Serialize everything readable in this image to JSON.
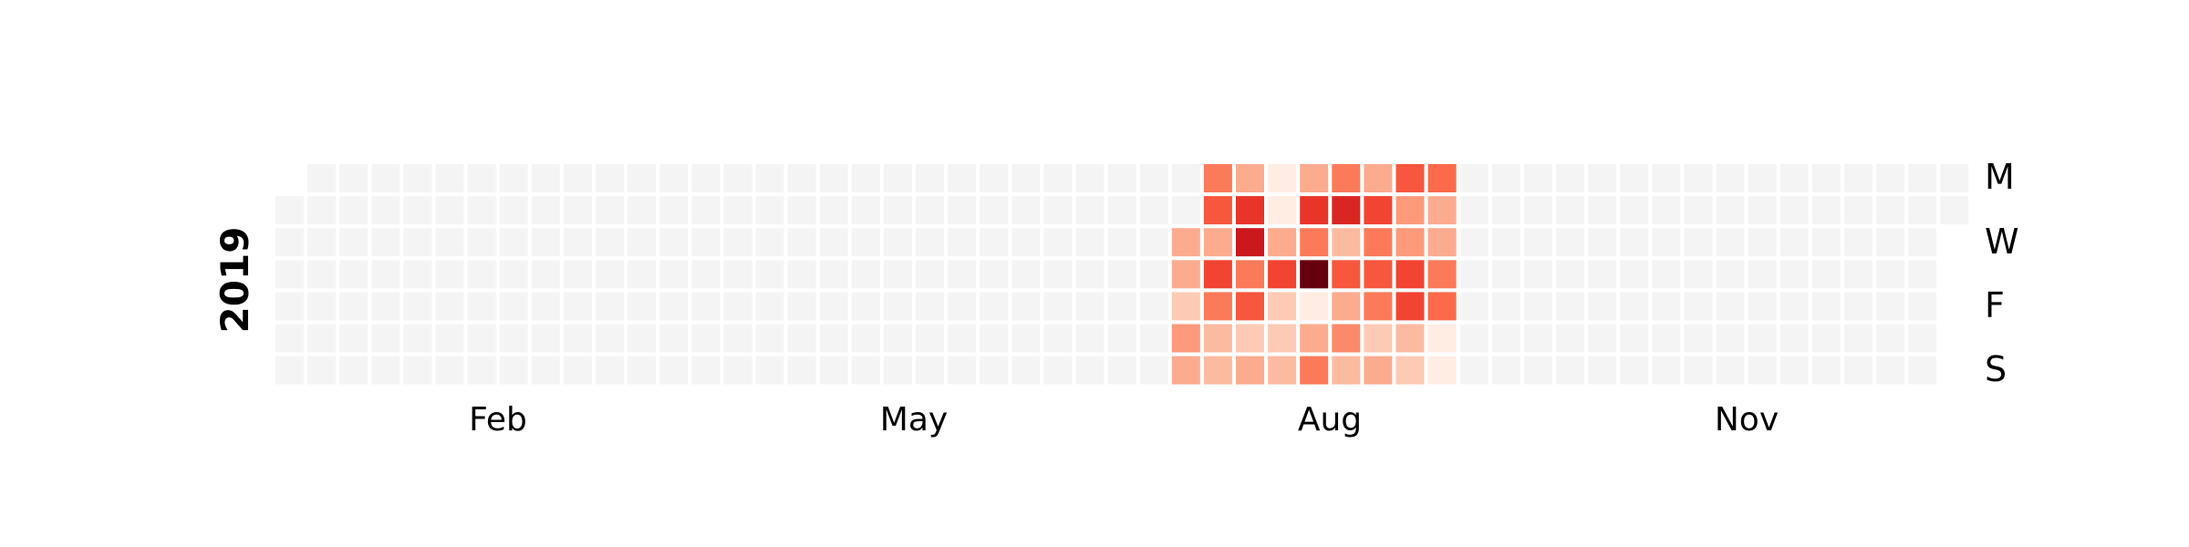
{
  "chart_data": {
    "type": "heatmap",
    "title": "",
    "year_label": "2019",
    "year": 2019,
    "month_labels": [
      "Feb",
      "May",
      "Aug",
      "Nov"
    ],
    "weekday_labels": [
      "M",
      "W",
      "F",
      "S"
    ],
    "colorscale": "Reds",
    "empty_color": "#f4f4f4",
    "value_range": [
      0,
      1
    ],
    "active_weeks": [
      {
        "week_start": "2019-07-15",
        "mon_to_sun": [
          null,
          null,
          0.3,
          0.3,
          0.2,
          0.35,
          0.3
        ]
      },
      {
        "week_start": "2019-07-22",
        "mon_to_sun": [
          0.45,
          0.55,
          0.3,
          0.6,
          0.45,
          0.25,
          0.25
        ]
      },
      {
        "week_start": "2019-07-29",
        "mon_to_sun": [
          0.3,
          0.65,
          0.75,
          0.45,
          0.55,
          0.2,
          0.3
        ]
      },
      {
        "week_start": "2019-08-05",
        "mon_to_sun": [
          0.05,
          0.05,
          0.3,
          0.6,
          0.2,
          0.2,
          0.25
        ]
      },
      {
        "week_start": "2019-08-12",
        "mon_to_sun": [
          0.3,
          0.65,
          0.45,
          1.0,
          0.05,
          0.3,
          0.45
        ]
      },
      {
        "week_start": "2019-08-19",
        "mon_to_sun": [
          0.45,
          0.7,
          0.25,
          0.55,
          0.3,
          0.4,
          0.25
        ]
      },
      {
        "week_start": "2019-08-26",
        "mon_to_sun": [
          0.3,
          0.6,
          0.45,
          0.55,
          0.45,
          0.2,
          0.3
        ]
      },
      {
        "week_start": "2019-09-02",
        "mon_to_sun": [
          0.55,
          0.35,
          0.35,
          0.6,
          0.6,
          0.25,
          0.2
        ]
      },
      {
        "week_start": "2019-09-09",
        "mon_to_sun": [
          0.5,
          0.3,
          0.3,
          0.45,
          0.5,
          0.05,
          0.05
        ]
      }
    ]
  }
}
